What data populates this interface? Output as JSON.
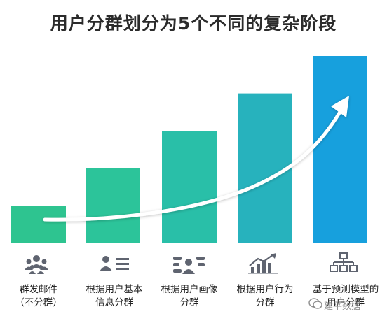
{
  "title": "用户分群划分为5个不同的复杂阶段",
  "chart_data": {
    "type": "bar",
    "categories": [
      "群发邮件（不分群）",
      "根据用户基本信息分群",
      "根据用户画像分群",
      "根据用户行为分群",
      "基于预测模型的用户分群"
    ],
    "values": [
      1,
      2,
      3,
      4,
      5
    ],
    "ylim": [
      0,
      5
    ],
    "grid": false,
    "trend_arrow": true
  },
  "labels": [
    {
      "line1": "群发邮件",
      "line2": "（不分群）"
    },
    {
      "line1": "根据用户基本",
      "line2": "信息分群"
    },
    {
      "line1": "根据用户画像",
      "line2": "分群"
    },
    {
      "line1": "根据用户行为",
      "line2": "分群"
    },
    {
      "line1": "基于预测模型的",
      "line2": "用户分群"
    }
  ],
  "icons": [
    "group-people-icon",
    "user-profile-card-icon",
    "user-tags-icon",
    "growth-chart-icon",
    "hierarchy-tree-icon"
  ],
  "colors": {
    "bar1": "#2ec490",
    "bar2": "#2cc49a",
    "bar3": "#29bfa8",
    "bar4": "#27b2bd",
    "bar5": "#17a0dd",
    "icon": "#5f6470",
    "title": "#2b2b2b"
  },
  "watermark": "建平数据"
}
